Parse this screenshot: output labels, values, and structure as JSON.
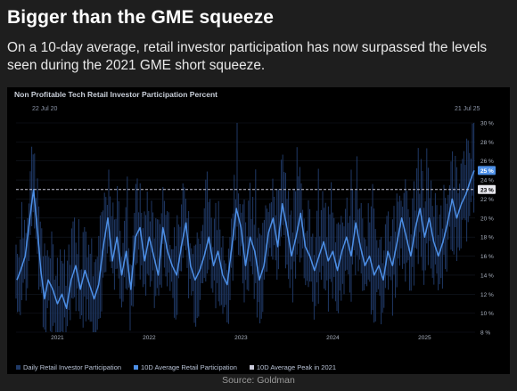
{
  "headline": "Bigger than the GME squeeze",
  "subheadline": "On a 10-day average, retail investor participation has now surpassed the levels seen during the 2021 GME short squeeze.",
  "source": "Source: Goldman",
  "colors": {
    "background": "#1e1e1e",
    "panel": "#000000",
    "daily_bars": "#1f3966",
    "avg_line": "#4d8fe6",
    "peak_line": "#c8c8d8",
    "current_badge": "#4d8fe6"
  },
  "chart_data": {
    "type": "line",
    "title": "Non Profitable Tech Retail Investor Participation Percent",
    "start_label": "22 Jul 20",
    "end_label": "21 Jul 25",
    "x_tick_labels": [
      "2021",
      "2022",
      "2023",
      "2024",
      "2025"
    ],
    "y_tick_labels": [
      "8 %",
      "10 %",
      "12 %",
      "14 %",
      "16 %",
      "18 %",
      "20 %",
      "22 %",
      "24 %",
      "26 %",
      "28 %",
      "30 %"
    ],
    "ylim": [
      8,
      30
    ],
    "y_ticks": [
      8,
      10,
      12,
      14,
      16,
      18,
      20,
      22,
      24,
      26,
      28,
      30
    ],
    "x_ticks": [
      2021.0,
      2022.0,
      2023.0,
      2024.0,
      2025.0
    ],
    "xlim": [
      2020.55,
      2025.55
    ],
    "legend": [
      "Daily Retail Investor Participation",
      "10D Average Retail Participation",
      "10D Average Peak in 2021"
    ],
    "peak_2021_value": 23,
    "peak_2021_label": "23 %",
    "current_value": 25,
    "current_label": "25 %",
    "series": [
      {
        "name": "10D Average Retail Participation",
        "x": [
          2020.56,
          2020.6,
          2020.65,
          2020.7,
          2020.74,
          2020.79,
          2020.82,
          2020.86,
          2020.9,
          2020.95,
          2021.0,
          2021.05,
          2021.1,
          2021.15,
          2021.2,
          2021.25,
          2021.3,
          2021.35,
          2021.4,
          2021.45,
          2021.5,
          2021.55,
          2021.6,
          2021.65,
          2021.7,
          2021.75,
          2021.8,
          2021.85,
          2021.9,
          2021.95,
          2022.0,
          2022.05,
          2022.1,
          2022.15,
          2022.2,
          2022.25,
          2022.3,
          2022.35,
          2022.4,
          2022.45,
          2022.5,
          2022.55,
          2022.6,
          2022.65,
          2022.7,
          2022.75,
          2022.8,
          2022.85,
          2022.9,
          2022.95,
          2023.0,
          2023.05,
          2023.1,
          2023.15,
          2023.2,
          2023.25,
          2023.3,
          2023.35,
          2023.4,
          2023.45,
          2023.5,
          2023.55,
          2023.6,
          2023.65,
          2023.7,
          2023.75,
          2023.8,
          2023.85,
          2023.9,
          2023.95,
          2024.0,
          2024.05,
          2024.1,
          2024.15,
          2024.2,
          2024.25,
          2024.3,
          2024.35,
          2024.4,
          2024.45,
          2024.5,
          2024.55,
          2024.6,
          2024.65,
          2024.7,
          2024.75,
          2024.8,
          2024.85,
          2024.9,
          2024.95,
          2025.0,
          2025.05,
          2025.1,
          2025.15,
          2025.2,
          2025.25,
          2025.3,
          2025.35,
          2025.4,
          2025.45,
          2025.5,
          2025.54
        ],
        "values": [
          13.5,
          14.5,
          16.0,
          20.0,
          23.0,
          18.0,
          14.5,
          11.5,
          13.5,
          12.5,
          11.0,
          12.0,
          10.5,
          13.5,
          15.0,
          12.5,
          14.5,
          13.0,
          11.5,
          13.0,
          17.0,
          20.0,
          15.5,
          18.0,
          14.0,
          16.5,
          12.5,
          18.0,
          19.0,
          15.5,
          18.0,
          16.0,
          14.0,
          19.0,
          16.5,
          15.0,
          14.0,
          17.0,
          19.5,
          15.0,
          13.5,
          14.5,
          16.0,
          18.0,
          15.0,
          16.5,
          14.0,
          13.0,
          17.0,
          21.0,
          19.0,
          15.0,
          18.0,
          16.5,
          13.5,
          15.0,
          18.5,
          20.0,
          17.0,
          21.5,
          19.0,
          16.0,
          18.0,
          20.5,
          17.0,
          16.0,
          14.5,
          16.0,
          17.5,
          15.5,
          16.5,
          14.5,
          16.5,
          18.0,
          16.0,
          19.5,
          17.0,
          15.0,
          16.0,
          14.0,
          15.0,
          13.5,
          16.5,
          15.0,
          17.5,
          20.0,
          18.0,
          16.0,
          19.0,
          21.0,
          18.0,
          20.0,
          17.5,
          16.0,
          17.5,
          19.5,
          22.0,
          20.0,
          21.5,
          22.5,
          24.0,
          25.0
        ]
      }
    ]
  }
}
